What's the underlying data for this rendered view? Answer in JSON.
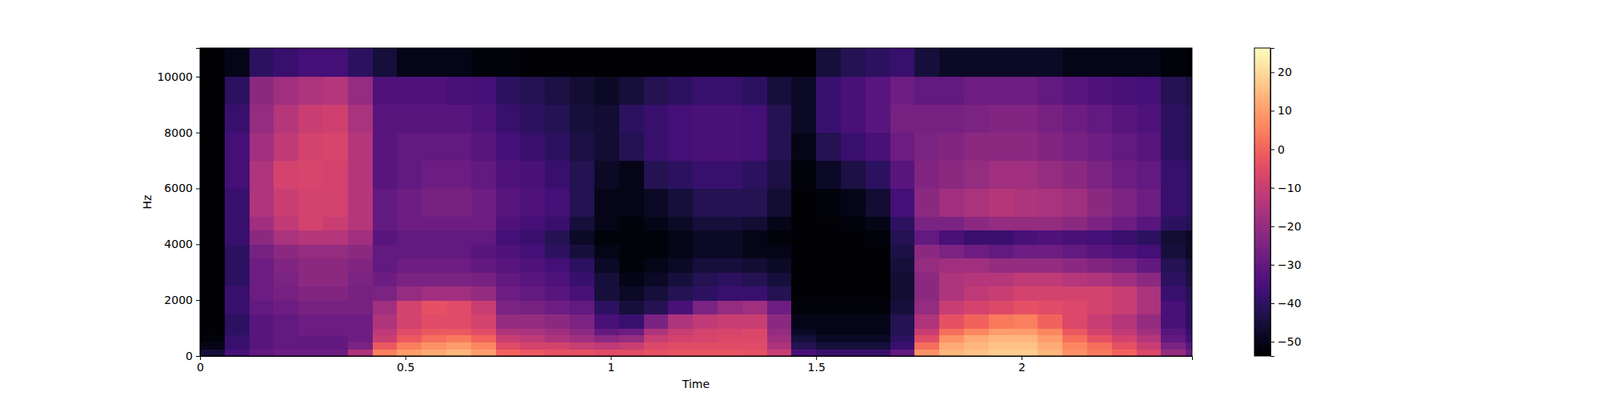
{
  "chart_data": {
    "type": "heatmap",
    "xlabel": "Time",
    "ylabel": "Hz",
    "xlim": [
      0,
      2.415
    ],
    "ylim": [
      0,
      11025
    ],
    "xticks": [
      0,
      0.5,
      1,
      1.5,
      2
    ],
    "yticks": [
      0,
      2000,
      4000,
      6000,
      8000,
      10000
    ],
    "time_edges": [
      0,
      0.06,
      0.12,
      0.18,
      0.24,
      0.3,
      0.36,
      0.42,
      0.48,
      0.54,
      0.6,
      0.66,
      0.72,
      0.78,
      0.84,
      0.9,
      0.96,
      1.02,
      1.08,
      1.14,
      1.2,
      1.26,
      1.32,
      1.38,
      1.44,
      1.5,
      1.56,
      1.62,
      1.68,
      1.74,
      1.8,
      1.86,
      1.92,
      1.98,
      2.04,
      2.1,
      2.16,
      2.22,
      2.28,
      2.34,
      2.4,
      2.415
    ],
    "freq_edges": [
      0,
      250,
      500,
      750,
      1000,
      1500,
      2000,
      2500,
      3000,
      3500,
      4000,
      4500,
      5000,
      6000,
      7000,
      8000,
      9000,
      10000,
      11025
    ],
    "cells": [
      [
        -45,
        -50,
        -52,
        -53,
        -53,
        -53,
        -53,
        -53,
        -53,
        -53,
        -53,
        -53,
        -53,
        -53,
        -53,
        -53,
        -53,
        -53
      ],
      [
        -35,
        -38,
        -38,
        -40,
        -40,
        -38,
        -38,
        -40,
        -40,
        -40,
        -38,
        -38,
        -38,
        -36,
        -36,
        -38,
        -40,
        -50
      ],
      [
        -30,
        -32,
        -32,
        -32,
        -32,
        -30,
        -28,
        -28,
        -28,
        -26,
        -22,
        -18,
        -15,
        -15,
        -18,
        -20,
        -22,
        -40
      ],
      [
        -28,
        -30,
        -30,
        -30,
        -30,
        -28,
        -26,
        -25,
        -24,
        -22,
        -16,
        -12,
        -10,
        -8,
        -12,
        -14,
        -18,
        -38
      ],
      [
        -28,
        -30,
        -30,
        -28,
        -28,
        -26,
        -24,
        -22,
        -22,
        -20,
        -14,
        -8,
        -8,
        -7,
        -8,
        -10,
        -15,
        -36
      ],
      [
        -28,
        -30,
        -30,
        -28,
        -28,
        -26,
        -24,
        -22,
        -22,
        -20,
        -14,
        -10,
        -8,
        -8,
        -7,
        -9,
        -14,
        -36
      ],
      [
        -15,
        -25,
        -28,
        -28,
        -28,
        -26,
        -26,
        -25,
        -24,
        -22,
        -18,
        -14,
        -14,
        -14,
        -14,
        -16,
        -20,
        -40
      ],
      [
        5,
        -2,
        -10,
        -12,
        -15,
        -18,
        -25,
        -28,
        -30,
        -30,
        -32,
        -30,
        -30,
        -32,
        -32,
        -32,
        -34,
        -45
      ],
      [
        10,
        5,
        -2,
        -5,
        -8,
        -8,
        -20,
        -25,
        -28,
        -30,
        -30,
        -28,
        -28,
        -30,
        -30,
        -32,
        -34,
        -50
      ],
      [
        12,
        8,
        2,
        -2,
        -5,
        -4,
        -18,
        -25,
        -28,
        -30,
        -30,
        -28,
        -26,
        -28,
        -30,
        -32,
        -34,
        -50
      ],
      [
        14,
        10,
        4,
        -2,
        -5,
        -5,
        -18,
        -25,
        -28,
        -30,
        -30,
        -28,
        -26,
        -28,
        -30,
        -32,
        -35,
        -50
      ],
      [
        10,
        6,
        0,
        -5,
        -8,
        -10,
        -20,
        -26,
        -30,
        -32,
        -30,
        -28,
        -28,
        -30,
        -32,
        -34,
        -36,
        -52
      ],
      [
        0,
        -5,
        -10,
        -15,
        -20,
        -25,
        -28,
        -30,
        -32,
        -34,
        -36,
        -34,
        -32,
        -34,
        -36,
        -38,
        -40,
        -52
      ],
      [
        -2,
        -8,
        -12,
        -16,
        -20,
        -26,
        -30,
        -32,
        -34,
        -36,
        -38,
        -36,
        -34,
        -35,
        -38,
        -40,
        -42,
        -53
      ],
      [
        -4,
        -8,
        -15,
        -18,
        -22,
        -28,
        -32,
        -34,
        -36,
        -40,
        -42,
        -38,
        -36,
        -38,
        -40,
        -42,
        -44,
        -53
      ],
      [
        -4,
        -10,
        -18,
        -22,
        -25,
        -30,
        -35,
        -38,
        -40,
        -45,
        -48,
        -45,
        -42,
        -42,
        -44,
        -45,
        -46,
        -53
      ],
      [
        -5,
        -12,
        -22,
        -30,
        -35,
        -40,
        -45,
        -45,
        -48,
        -50,
        -52,
        -50,
        -50,
        -48,
        -46,
        -46,
        -48,
        -53
      ],
      [
        -5,
        -10,
        -20,
        -28,
        -38,
        -45,
        -48,
        -50,
        -52,
        -52,
        -52,
        -52,
        -50,
        -50,
        -42,
        -40,
        -45,
        -53
      ],
      [
        -4,
        -6,
        -10,
        -15,
        -25,
        -42,
        -45,
        -48,
        -50,
        -52,
        -52,
        -50,
        -48,
        -42,
        -38,
        -38,
        -42,
        -53
      ],
      [
        -3,
        -5,
        -8,
        -10,
        -15,
        -35,
        -42,
        -45,
        -48,
        -50,
        -50,
        -48,
        -45,
        -40,
        -36,
        -36,
        -40,
        -53
      ],
      [
        -3,
        -5,
        -7,
        -8,
        -12,
        -25,
        -40,
        -42,
        -45,
        -48,
        -48,
        -45,
        -42,
        -38,
        -35,
        -35,
        -38,
        -53
      ],
      [
        -3,
        -5,
        -6,
        -7,
        -10,
        -20,
        -38,
        -40,
        -45,
        -48,
        -48,
        -45,
        -42,
        -38,
        -35,
        -35,
        -38,
        -53
      ],
      [
        -4,
        -5,
        -6,
        -6,
        -10,
        -18,
        -38,
        -42,
        -46,
        -50,
        -50,
        -46,
        -42,
        -40,
        -36,
        -36,
        -40,
        -53
      ],
      [
        -10,
        -15,
        -18,
        -20,
        -22,
        -28,
        -42,
        -45,
        -48,
        -50,
        -52,
        -50,
        -46,
        -44,
        -42,
        -42,
        -45,
        -53
      ],
      [
        -35,
        -42,
        -45,
        -48,
        -50,
        -52,
        -53,
        -53,
        -53,
        -53,
        -53,
        -53,
        -53,
        -52,
        -50,
        -48,
        -48,
        -53
      ],
      [
        -38,
        -45,
        -48,
        -50,
        -50,
        -52,
        -53,
        -53,
        -53,
        -53,
        -53,
        -53,
        -52,
        -48,
        -42,
        -38,
        -38,
        -45
      ],
      [
        -38,
        -45,
        -48,
        -50,
        -50,
        -52,
        -53,
        -53,
        -53,
        -53,
        -53,
        -52,
        -50,
        -44,
        -38,
        -35,
        -35,
        -42
      ],
      [
        -38,
        -45,
        -48,
        -50,
        -50,
        -52,
        -53,
        -53,
        -53,
        -53,
        -52,
        -50,
        -46,
        -40,
        -35,
        -32,
        -32,
        -40
      ],
      [
        -30,
        -38,
        -40,
        -42,
        -42,
        -45,
        -46,
        -46,
        -45,
        -44,
        -42,
        -40,
        -36,
        -32,
        -28,
        -26,
        -28,
        -38
      ],
      [
        8,
        2,
        -5,
        -10,
        -15,
        -20,
        -22,
        -22,
        -20,
        -22,
        -30,
        -25,
        -22,
        -24,
        -25,
        -26,
        -30,
        -45
      ],
      [
        14,
        12,
        8,
        2,
        -4,
        -10,
        -15,
        -15,
        -18,
        -25,
        -35,
        -25,
        -18,
        -22,
        -24,
        -26,
        -30,
        -48
      ],
      [
        16,
        14,
        12,
        6,
        0,
        -8,
        -12,
        -14,
        -18,
        -28,
        -38,
        -22,
        -16,
        -20,
        -22,
        -25,
        -28,
        -48
      ],
      [
        18,
        16,
        14,
        10,
        4,
        -6,
        -10,
        -14,
        -20,
        -30,
        -38,
        -20,
        -14,
        -18,
        -22,
        -24,
        -28,
        -48
      ],
      [
        18,
        16,
        14,
        10,
        5,
        -4,
        -8,
        -12,
        -20,
        -28,
        -35,
        -20,
        -15,
        -18,
        -22,
        -24,
        -28,
        -48
      ],
      [
        14,
        12,
        10,
        6,
        0,
        -5,
        -8,
        -12,
        -20,
        -28,
        -34,
        -20,
        -16,
        -20,
        -24,
        -26,
        -30,
        -48
      ],
      [
        8,
        6,
        2,
        -2,
        -6,
        -6,
        -8,
        -14,
        -22,
        -30,
        -35,
        -22,
        -18,
        -22,
        -26,
        -28,
        -32,
        -50
      ],
      [
        4,
        2,
        -4,
        -8,
        -10,
        -8,
        -8,
        -15,
        -24,
        -32,
        -36,
        -25,
        -22,
        -25,
        -28,
        -30,
        -34,
        -50
      ],
      [
        0,
        -4,
        -8,
        -12,
        -14,
        -10,
        -10,
        -18,
        -26,
        -34,
        -38,
        -28,
        -25,
        -28,
        -30,
        -32,
        -35,
        -50
      ],
      [
        -6,
        -10,
        -14,
        -18,
        -20,
        -16,
        -16,
        -22,
        -30,
        -36,
        -40,
        -32,
        -28,
        -30,
        -32,
        -34,
        -36,
        -50
      ],
      [
        -20,
        -25,
        -30,
        -32,
        -35,
        -35,
        -38,
        -40,
        -42,
        -45,
        -46,
        -40,
        -38,
        -38,
        -40,
        -40,
        -42,
        -52
      ],
      [
        -28,
        -32,
        -36,
        -38,
        -40,
        -40,
        -42,
        -44,
        -45,
        -48,
        -48,
        -42,
        -40,
        -40,
        -42,
        -42,
        -44,
        -53
      ]
    ],
    "clim": [
      -53.7,
      26.3
    ],
    "cticks": [
      {
        "value": -50,
        "label": "−50"
      },
      {
        "value": -40,
        "label": "−40"
      },
      {
        "value": -30,
        "label": "−30"
      },
      {
        "value": -20,
        "label": "−20"
      },
      {
        "value": -10,
        "label": "−10"
      },
      0,
      10,
      20
    ]
  }
}
